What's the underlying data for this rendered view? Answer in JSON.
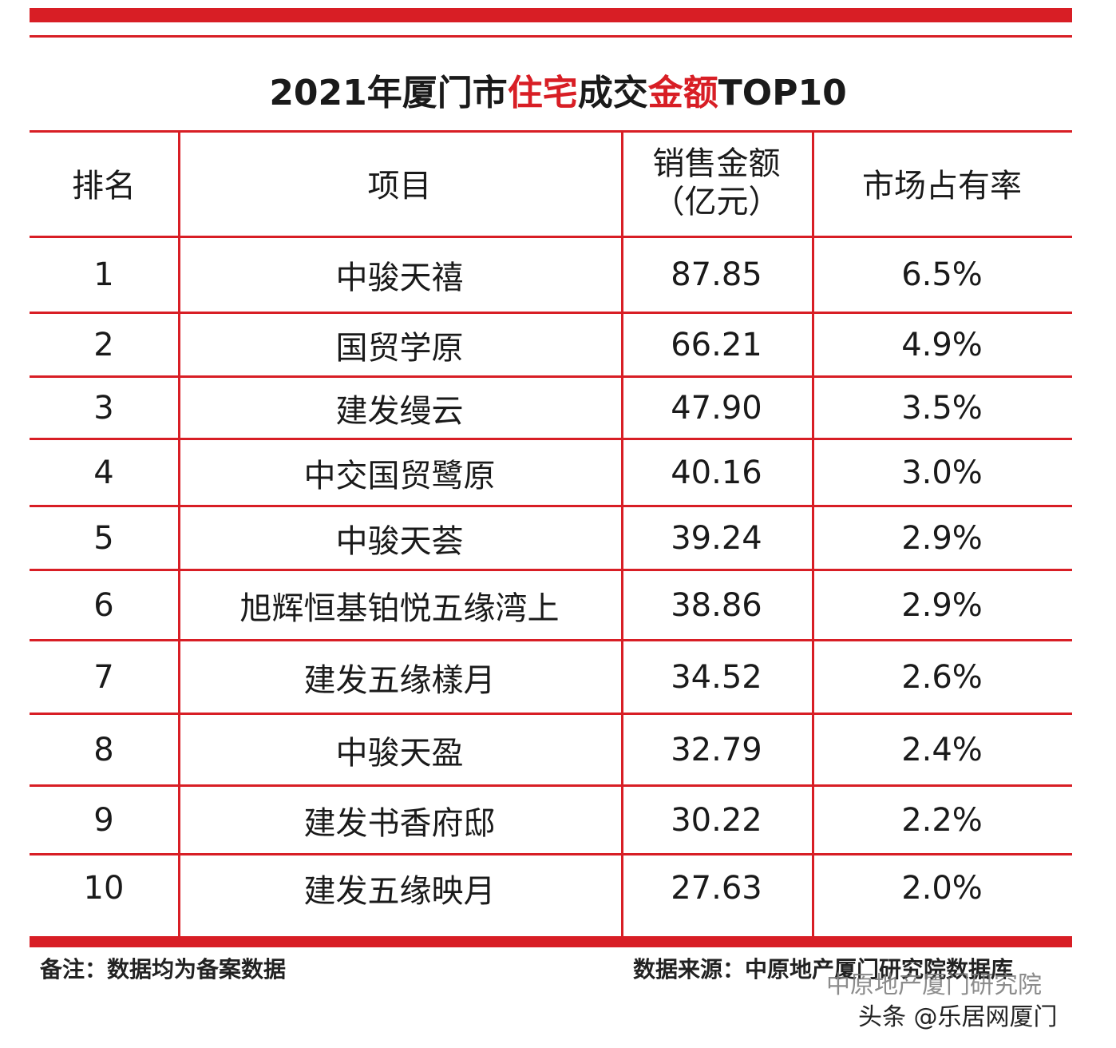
{
  "title": {
    "parts": [
      "2021年厦门市",
      "住宅",
      "成交",
      "金额",
      "TOP10"
    ]
  },
  "table": {
    "header": [
      "排名",
      "项目",
      [
        "销售金额",
        "（亿元）"
      ],
      "市场占有率"
    ],
    "rows": [
      [
        "1",
        "中骏天禧",
        "87.85",
        "6.5%"
      ],
      [
        "2",
        "国贸学原",
        "66.21",
        "4.9%"
      ],
      [
        "3",
        "建发缦云",
        "47.90",
        "3.5%"
      ],
      [
        "4",
        "中交国贸鹭原",
        "40.16",
        "3.0%"
      ],
      [
        "5",
        "中骏天荟",
        "39.24",
        "2.9%"
      ],
      [
        "6",
        "旭辉恒基铂悦五缘湾上",
        "38.86",
        "2.9%"
      ],
      [
        "7",
        "建发五缘樣月",
        "34.52",
        "2.6%"
      ],
      [
        "8",
        "中骏天盈",
        "32.79",
        "2.4%"
      ],
      [
        "9",
        "建发书香府邸",
        "30.22",
        "2.2%"
      ],
      [
        "10",
        "建发五缘映月",
        "27.63",
        "2.0%"
      ]
    ]
  },
  "footer": {
    "note": "备注：数据均为备案数据",
    "source": "数据来源：中原地产厦门研究院数据库"
  },
  "watermark": {
    "account": "中原地产厦门研究院",
    "platform": "头条 @乐居网厦门"
  }
}
